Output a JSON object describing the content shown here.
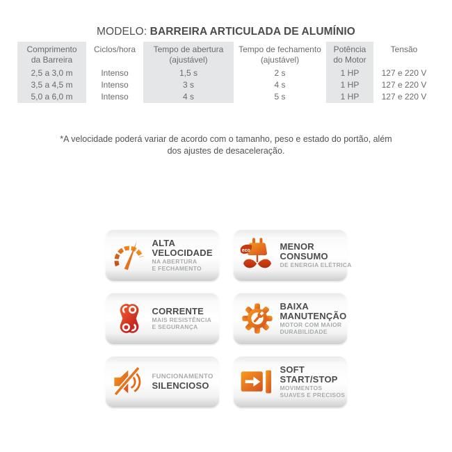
{
  "title": {
    "prefix": "MODELO:",
    "model": "BARREIRA ARTICULADA DE ALUMÍNIO"
  },
  "table": {
    "headers": [
      {
        "lines": [
          "Comprimento",
          "da Barreira"
        ],
        "shaded": true
      },
      {
        "lines": [
          "Ciclos/hora"
        ],
        "shaded": false
      },
      {
        "lines": [
          "Tempo de abertura",
          "(ajustável)"
        ],
        "shaded": true
      },
      {
        "lines": [
          "Tempo de fechamento",
          "(ajustável)"
        ],
        "shaded": false
      },
      {
        "lines": [
          "Potência",
          "do Motor"
        ],
        "shaded": true
      },
      {
        "lines": [
          "Tensão"
        ],
        "shaded": false
      }
    ],
    "rows": [
      [
        "2,5 a 3,0 m",
        "Intenso",
        "1,5 s",
        "2 s",
        "1 HP",
        "127 e 220 V"
      ],
      [
        "3,5 a 4,5 m",
        "Intenso",
        "3 s",
        "4 s",
        "1 HP",
        "127 e 220 V"
      ],
      [
        "5,0 a 6,0 m",
        "Intenso",
        "4 s",
        "5 s",
        "1 HP",
        "127 e 220 V"
      ]
    ]
  },
  "note": {
    "line1": "*A velocidade poderá variar de acordo com o tamanho, peso e estado do portão, além",
    "line2": "dos ajustes de desaceleração."
  },
  "badges": [
    {
      "id": "alta-velocidade",
      "icon": "speedometer-icon",
      "title_lines": [
        "ALTA",
        "VELOCIDADE"
      ],
      "subtitle_lines": [
        "NA ABERTURA",
        "E FECHAMENTO"
      ]
    },
    {
      "id": "menor-consumo",
      "icon": "eco-plug-icon",
      "title_lines": [
        "MENOR",
        "CONSUMO"
      ],
      "subtitle_lines": [
        "DE ENERGIA ELÉTRICA"
      ]
    },
    {
      "id": "corrente",
      "icon": "chain-icon",
      "title_lines": [
        "CORRENTE"
      ],
      "subtitle_lines": [
        "MAIS RESISTÊNCIA",
        "E SEGURANÇA"
      ]
    },
    {
      "id": "baixa-manutencao",
      "icon": "gear-wrench-icon",
      "title_lines": [
        "BAIXA",
        "MANUTENÇÃO"
      ],
      "subtitle_lines": [
        "MOTOR COM MAIOR",
        "DURABILIDADE"
      ]
    },
    {
      "id": "funcionamento-silencioso",
      "icon": "muted-speaker-icon",
      "pre_title": "FUNCIONAMENTO",
      "title_lines": [
        "SILENCIOSO"
      ],
      "subtitle_lines": []
    },
    {
      "id": "soft-start-stop",
      "icon": "arrow-start-stop-icon",
      "title_lines": [
        "SOFT",
        "START/STOP"
      ],
      "subtitle_lines": [
        "MOVIMENTOS",
        "SUAVES E PRECISOS"
      ]
    }
  ],
  "colors": {
    "accent_orange": "#f7941e",
    "accent_dark_orange": "#d4501f",
    "accent_red": "#bb1a20",
    "table_shade": "#e5e6e7",
    "text_dark": "#4a4b4d",
    "text_gray": "#696a6d",
    "text_light_gray": "#a8abad"
  }
}
